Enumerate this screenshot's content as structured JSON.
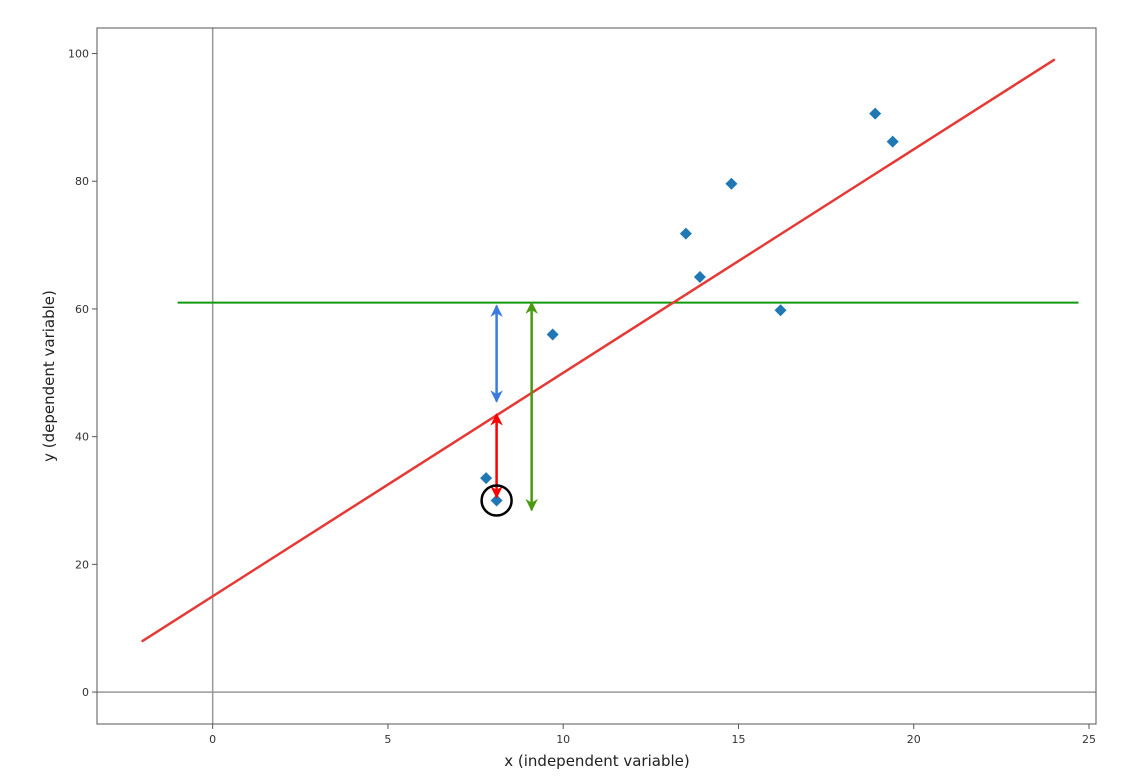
{
  "chart_data": {
    "type": "scatter",
    "title": "",
    "xlabel": "x (independent variable)",
    "ylabel": "y (dependent variable)",
    "xlim": [
      -3.3,
      25.2
    ],
    "ylim": [
      -5,
      104
    ],
    "x_ticks": [
      0,
      5,
      10,
      15,
      20,
      25
    ],
    "y_ticks": [
      0,
      20,
      40,
      60,
      80,
      100
    ],
    "grid": false,
    "legend": "none",
    "points": [
      {
        "x": 7.8,
        "y": 33.5
      },
      {
        "x": 8.1,
        "y": 30.0
      },
      {
        "x": 9.7,
        "y": 56.0
      },
      {
        "x": 13.5,
        "y": 71.8
      },
      {
        "x": 13.9,
        "y": 65.0
      },
      {
        "x": 14.8,
        "y": 79.6
      },
      {
        "x": 16.2,
        "y": 59.8
      },
      {
        "x": 18.9,
        "y": 90.6
      },
      {
        "x": 19.4,
        "y": 86.2
      }
    ],
    "regression_line": {
      "x": [
        -2,
        24
      ],
      "y": [
        8,
        99
      ]
    },
    "mean_line": {
      "x": [
        -1,
        24.7
      ],
      "y": 61
    },
    "highlighted_point": {
      "x": 8.1,
      "y": 30.0
    },
    "arrows": [
      {
        "color": "blue",
        "x": 8.1,
        "y_from": 45.5,
        "y_to": 60.5
      },
      {
        "color": "red",
        "x": 8.1,
        "y_from": 30.5,
        "y_to": 43.5
      },
      {
        "color": "green",
        "x": 9.1,
        "y_from": 28.5,
        "y_to": 61
      }
    ],
    "colors": {
      "points": "#1f77b4",
      "regression": "#e53935",
      "mean": "#119911",
      "blue_arrow": "#3a7be0",
      "red_arrow": "#ff0000",
      "green_arrow": "#4a9a10",
      "zero_lines": "#999999",
      "frame": "#555555"
    }
  }
}
